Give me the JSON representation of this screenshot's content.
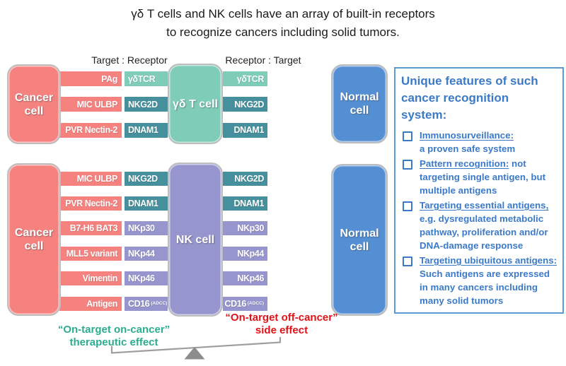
{
  "title": {
    "line1": "γδ T cells and NK cells have an array of built-in receptors",
    "line2": "to recognize cancers including solid tumors."
  },
  "labels": {
    "target_receptor": "Target : Receptor",
    "receptor_target": "Receptor : Target"
  },
  "top_group": {
    "cancer_cell": "Cancer cell",
    "immune_cell": "γδ T cell",
    "normal_cell": "Normal cell",
    "rows": [
      {
        "target": "PAg",
        "receptor": "γδTCR",
        "type": "tcr"
      },
      {
        "target": "MIC ULBP",
        "receptor": "NKG2D",
        "type": "teal"
      },
      {
        "target": "PVR Nectin-2",
        "receptor": "DNAM1",
        "type": "teal"
      }
    ]
  },
  "bottom_group": {
    "cancer_cell": "Cancer cell",
    "immune_cell": "NK cell",
    "normal_cell": "Normal cell",
    "rows": [
      {
        "target": "MIC ULBP",
        "receptor": "NKG2D",
        "type": "teal"
      },
      {
        "target": "PVR Nectin-2",
        "receptor": "DNAM1",
        "type": "teal"
      },
      {
        "target": "B7-H6 BAT3",
        "receptor": "NKp30",
        "type": "purple"
      },
      {
        "target": "MLL5 variant",
        "receptor": "NKp44",
        "type": "purple"
      },
      {
        "target": "Vimentin",
        "receptor": "NKp46",
        "type": "purple"
      },
      {
        "target": "Antigen",
        "receptor": "CD16",
        "receptor_suffix": "(ADCC)",
        "type": "purple"
      }
    ]
  },
  "features_panel": {
    "title": "Unique features of such cancer recognition system:",
    "items": [
      {
        "heading": "Immunosurveillance:",
        "body": "a proven safe system",
        "break_after_heading": true
      },
      {
        "heading": "Pattern recognition:",
        "body": "not targeting single antigen, but multiple antigens"
      },
      {
        "heading": "Targeting essential antigens,",
        "body": "e.g. dysregulated metabolic pathway, proliferation and/or DNA-damage response"
      },
      {
        "heading": "Targeting ubiquitous antigens:",
        "body": "Such antigens are expressed in many cancers including many solid tumors"
      }
    ]
  },
  "footer": {
    "green_line1": "“On-target on-cancer”",
    "green_line2": "therapeutic effect",
    "red_line1": "“On-target off-cancer”",
    "red_line2": "side effect"
  },
  "colors": {
    "pink": "#F5827F",
    "teal_light": "#7FCDB9",
    "teal_dark": "#46909E",
    "purple": "#9795CE",
    "blue": "#548ED3",
    "panel_border": "#5B9BD5",
    "panel_text": "#3B7AC9",
    "green_text": "#2BAD90",
    "red_text": "#E01319",
    "seesaw_gray": "#9E9E9E"
  }
}
